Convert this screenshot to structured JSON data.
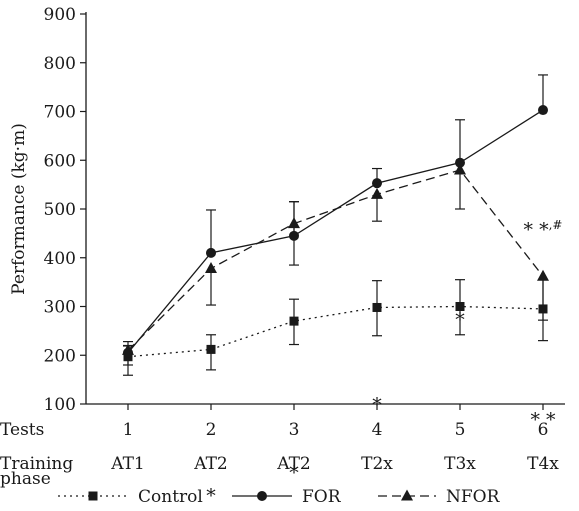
{
  "chart_data": {
    "type": "line",
    "ylabel": "Performance (kg·m)",
    "ylim": [
      100,
      900
    ],
    "yticks": [
      100,
      200,
      300,
      400,
      500,
      600,
      700,
      800,
      900
    ],
    "x": [
      1,
      2,
      3,
      4,
      5,
      6
    ],
    "rows": [
      {
        "label": "Tests",
        "values": [
          "1",
          "2",
          "3",
          "4",
          "5",
          "6"
        ]
      },
      {
        "label": "Training",
        "label2": "phase",
        "values": [
          "AT1",
          "AT2",
          "AT2",
          "T2x",
          "T3x",
          "T4x"
        ]
      }
    ],
    "series": [
      {
        "name": "Control",
        "values": [
          197,
          212,
          270,
          298,
          300,
          295
        ],
        "err_upper": [
          22,
          30,
          45,
          55,
          55,
          60
        ],
        "err_lower": [
          38,
          42,
          48,
          58,
          58,
          65
        ],
        "line": "dotted",
        "marker": "square"
      },
      {
        "name": "FOR",
        "values": [
          205,
          410,
          445,
          553,
          595,
          703
        ],
        "err_upper": [
          15,
          88,
          70,
          30,
          88,
          72
        ],
        "err_lower": [
          25,
          0,
          0,
          0,
          0,
          0
        ],
        "line": "solid",
        "marker": "circle"
      },
      {
        "name": "NFOR",
        "values": [
          210,
          378,
          470,
          530,
          580,
          362
        ],
        "err_upper": [
          18,
          0,
          45,
          0,
          0,
          0
        ],
        "err_lower": [
          0,
          75,
          85,
          55,
          80,
          90
        ],
        "line": "dashed",
        "marker": "triangle"
      }
    ],
    "annotations": [
      {
        "x": 2,
        "y": 488,
        "text": "*"
      },
      {
        "x": 3,
        "y": 465,
        "text": "*"
      },
      {
        "x": 4,
        "y": 397,
        "text": "*"
      },
      {
        "x": 5,
        "y": 312,
        "text": "*"
      },
      {
        "x": 6,
        "y": 222,
        "text": "* *",
        "sup": ",#"
      },
      {
        "x": 6,
        "y": 412,
        "text": "* *"
      }
    ]
  }
}
